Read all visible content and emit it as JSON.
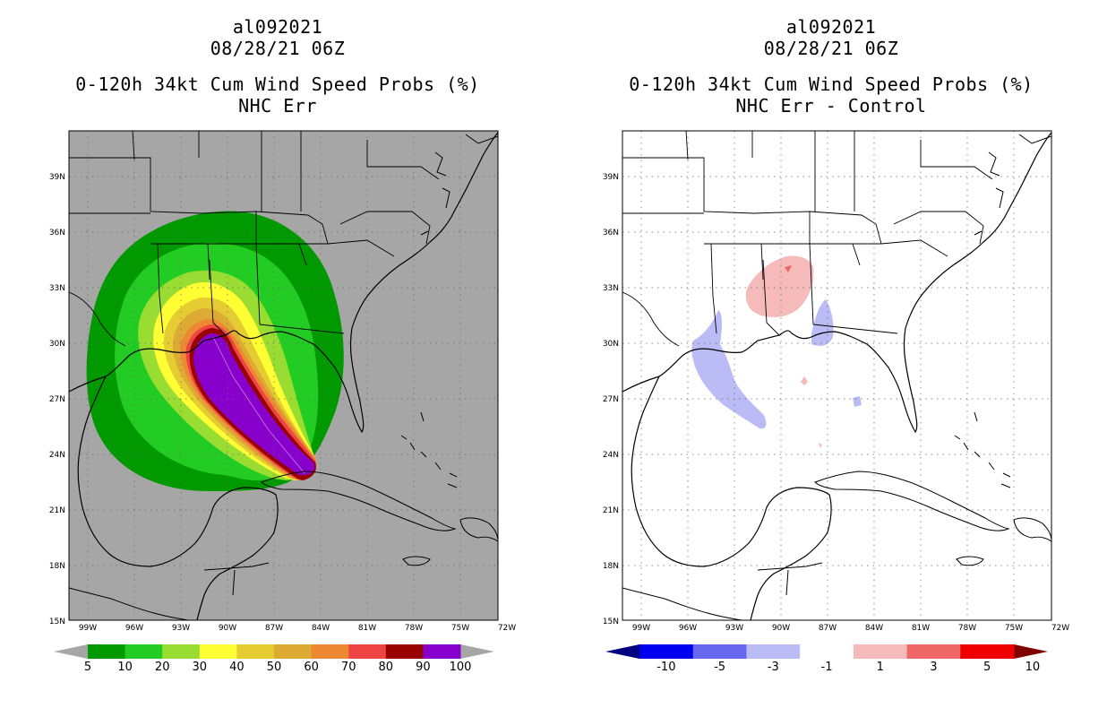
{
  "panels": [
    {
      "id": "left",
      "storm_id": "al092021",
      "datetime": "08/28/21 06Z",
      "title": "0-120h 34kt Cum Wind Speed Probs (%)",
      "subtitle": "NHC Err",
      "background_color": "#a6a6a6",
      "colorbar": {
        "type": "sequential",
        "colors": [
          "#009900",
          "#22cc22",
          "#99dd33",
          "#ffff33",
          "#e6cc33",
          "#ddaa33",
          "#ee8833",
          "#ee4444",
          "#990000",
          "#8800cc"
        ],
        "arrow_low": "#a6a6a6",
        "arrow_high": "#a6a6a6",
        "labels": [
          "5",
          "10",
          "20",
          "30",
          "40",
          "50",
          "60",
          "70",
          "80",
          "90",
          "100"
        ]
      }
    },
    {
      "id": "right",
      "storm_id": "al092021",
      "datetime": "08/28/21 06Z",
      "title": "0-120h 34kt Cum Wind Speed Probs (%)",
      "subtitle": "NHC Err - Control",
      "background_color": "#ffffff",
      "colorbar": {
        "type": "diverging",
        "colors": [
          "#0000ee",
          "#6666ee",
          "#bbbbf5",
          "#ffffff",
          "#f5bbbb",
          "#ee6666",
          "#ee0000"
        ],
        "arrow_low": "#000080",
        "arrow_high": "#800000",
        "labels": [
          "-10",
          "-5",
          "-3",
          "-1",
          "1",
          "3",
          "5",
          "10"
        ]
      }
    }
  ],
  "axes": {
    "lat_labels": [
      "39N",
      "36N",
      "33N",
      "30N",
      "27N",
      "24N",
      "21N",
      "18N",
      "15N"
    ],
    "lon_labels": [
      "99W",
      "96W",
      "93W",
      "90W",
      "87W",
      "84W",
      "81W",
      "78W",
      "75W",
      "72W"
    ]
  },
  "chart_data": [
    {
      "type": "heatmap",
      "title": "0-120h 34kt Cum Wind Speed Probs (%)",
      "subtitle": "NHC Err",
      "storm": "al092021",
      "issued": "08/28/21 06Z",
      "lon_range": [
        -100,
        -72
      ],
      "lat_range": [
        15,
        41.5
      ],
      "levels": [
        5,
        10,
        20,
        30,
        40,
        50,
        60,
        70,
        80,
        90,
        100
      ],
      "track_points": [
        [
          -84.4,
          23.3
        ],
        [
          -86.5,
          26.0
        ],
        [
          -88.8,
          28.5
        ],
        [
          -90.5,
          30.5
        ]
      ]
    },
    {
      "type": "heatmap",
      "title": "0-120h 34kt Cum Wind Speed Probs (%)",
      "subtitle": "NHC Err - Control",
      "storm": "al092021",
      "issued": "08/28/21 06Z",
      "lon_range": [
        -100,
        -72
      ],
      "lat_range": [
        15,
        41.5
      ],
      "levels": [
        -10,
        -5,
        -3,
        -1,
        1,
        3,
        5,
        10
      ]
    }
  ]
}
